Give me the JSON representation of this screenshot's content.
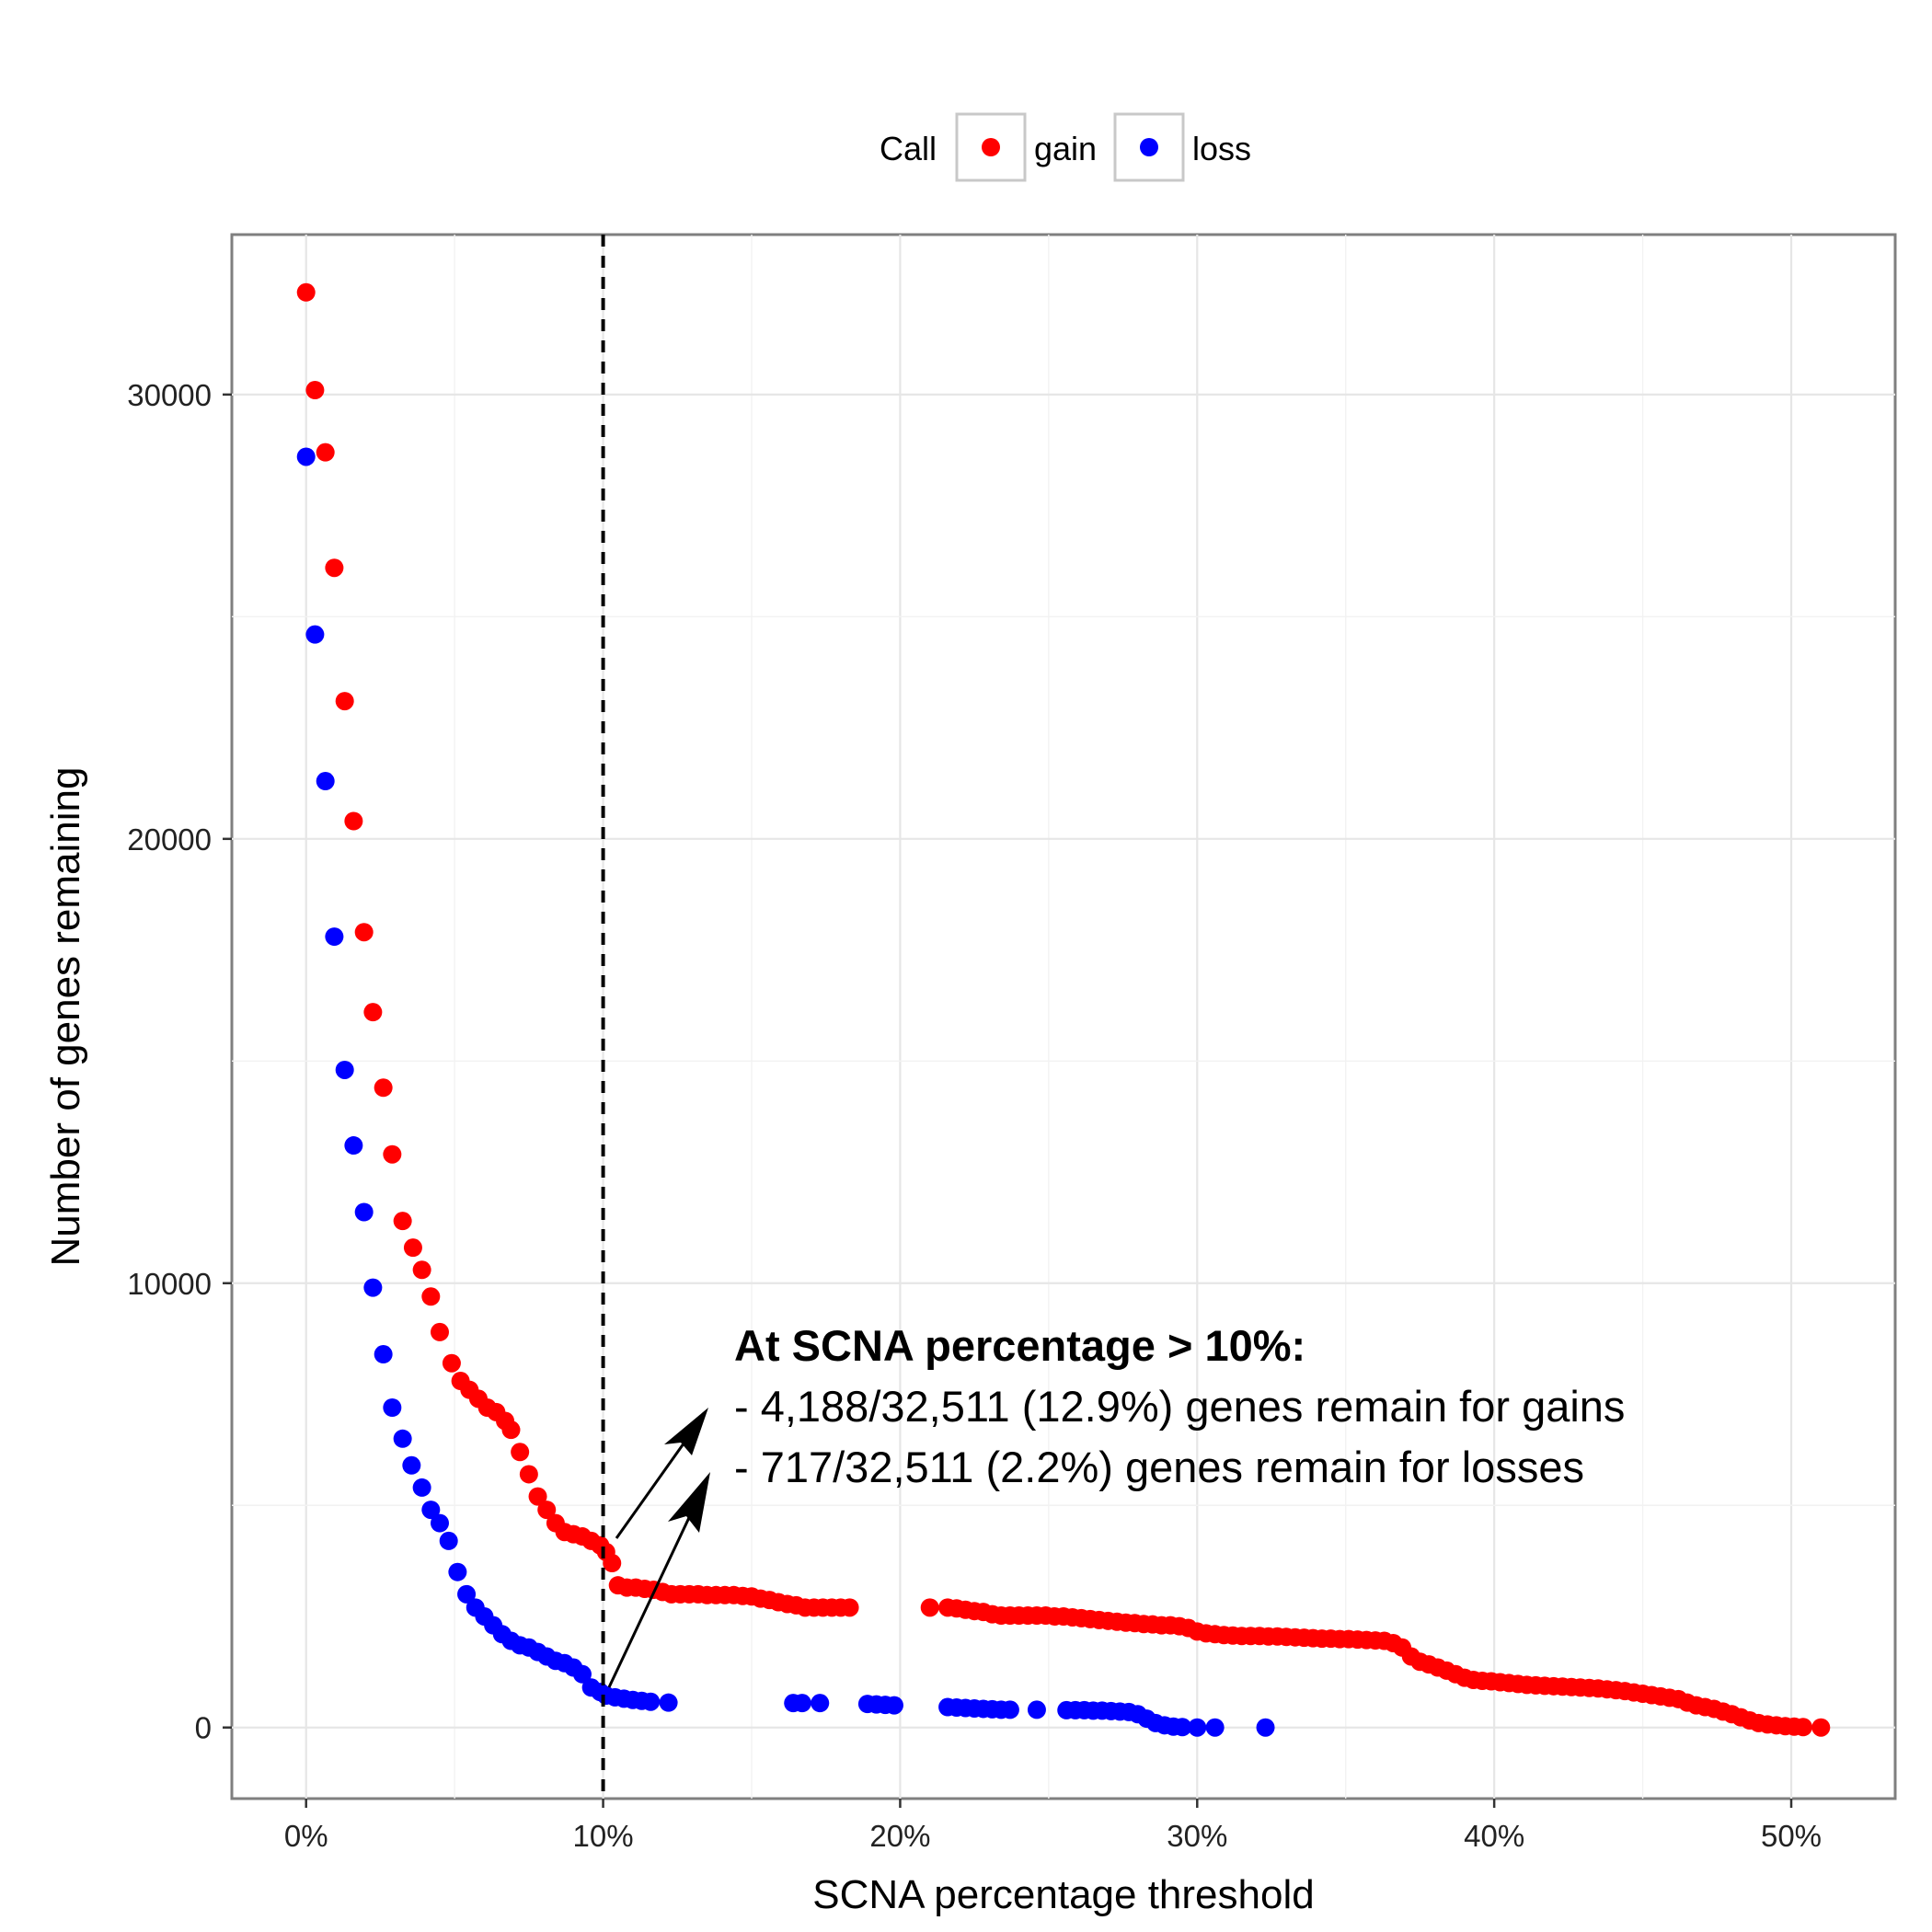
{
  "chart_data": {
    "type": "scatter",
    "xlabel": "SCNA percentage threshold",
    "ylabel": "Number of genes remaining",
    "xlim": [
      -2.5,
      53.5
    ],
    "ylim": [
      -1600,
      33600
    ],
    "x_ticks": [
      0,
      10,
      20,
      30,
      40,
      50
    ],
    "x_tick_labels": [
      "0%",
      "10%",
      "20%",
      "30%",
      "40%",
      "50%"
    ],
    "y_ticks": [
      0,
      10000,
      20000,
      30000
    ],
    "y_tick_labels": [
      "0",
      "10000",
      "20000",
      "30000"
    ],
    "grid": true,
    "legend": {
      "title": "Call",
      "position": "top",
      "entries": [
        {
          "label": "gain",
          "color": "#ff0000"
        },
        {
          "label": "loss",
          "color": "#0000ff"
        }
      ]
    },
    "threshold_line": {
      "x": 10,
      "style": "dashed"
    },
    "annotation": {
      "title": "At SCNA percentage > 10%:",
      "lines": [
        "- 4,188/32,511 (12.9%) genes remain for gains",
        "- 717/32,511 (2.2%) genes remain for losses"
      ]
    },
    "series": [
      {
        "name": "gain",
        "color": "#ff0000",
        "points": [
          [
            0.0,
            32300
          ],
          [
            0.3,
            30100
          ],
          [
            0.65,
            28700
          ],
          [
            0.95,
            26100
          ],
          [
            1.3,
            23100
          ],
          [
            1.6,
            20400
          ],
          [
            1.95,
            17900
          ],
          [
            2.25,
            16100
          ],
          [
            2.6,
            14400
          ],
          [
            2.9,
            12900
          ],
          [
            3.25,
            11400
          ],
          [
            3.6,
            10800
          ],
          [
            3.9,
            10300
          ],
          [
            4.2,
            9700
          ],
          [
            4.5,
            8900
          ],
          [
            4.9,
            8200
          ],
          [
            5.2,
            7800
          ],
          [
            5.5,
            7600
          ],
          [
            5.8,
            7400
          ],
          [
            6.1,
            7200
          ],
          [
            6.4,
            7100
          ],
          [
            6.7,
            6900
          ],
          [
            6.9,
            6700
          ],
          [
            7.2,
            6200
          ],
          [
            7.5,
            5700
          ],
          [
            7.8,
            5200
          ],
          [
            8.1,
            4900
          ],
          [
            8.4,
            4600
          ],
          [
            8.7,
            4400
          ],
          [
            9.0,
            4350
          ],
          [
            9.3,
            4300
          ],
          [
            9.6,
            4200
          ],
          [
            9.9,
            4100
          ],
          [
            10.1,
            3950
          ],
          [
            10.3,
            3700
          ],
          [
            10.5,
            3200
          ],
          [
            10.8,
            3150
          ],
          [
            11.1,
            3150
          ],
          [
            11.4,
            3120
          ],
          [
            11.7,
            3100
          ],
          [
            12.0,
            3050
          ],
          [
            12.3,
            3000
          ],
          [
            12.6,
            3000
          ],
          [
            12.9,
            3000
          ],
          [
            13.2,
            3000
          ],
          [
            13.5,
            2980
          ],
          [
            13.8,
            2980
          ],
          [
            14.1,
            2980
          ],
          [
            14.4,
            2980
          ],
          [
            14.7,
            2960
          ],
          [
            15.0,
            2950
          ],
          [
            15.3,
            2900
          ],
          [
            15.6,
            2870
          ],
          [
            15.9,
            2820
          ],
          [
            16.2,
            2780
          ],
          [
            16.5,
            2750
          ],
          [
            16.8,
            2700
          ],
          [
            17.1,
            2700
          ],
          [
            17.4,
            2700
          ],
          [
            17.7,
            2700
          ],
          [
            18.0,
            2700
          ],
          [
            18.3,
            2700
          ],
          [
            21.0,
            2700
          ],
          [
            21.6,
            2700
          ],
          [
            21.9,
            2680
          ],
          [
            22.2,
            2650
          ],
          [
            22.5,
            2620
          ],
          [
            22.8,
            2600
          ],
          [
            23.1,
            2550
          ],
          [
            23.4,
            2520
          ],
          [
            23.7,
            2520
          ],
          [
            24.0,
            2520
          ],
          [
            24.3,
            2520
          ],
          [
            24.6,
            2520
          ],
          [
            24.9,
            2520
          ],
          [
            25.2,
            2500
          ],
          [
            25.5,
            2500
          ],
          [
            25.8,
            2480
          ],
          [
            26.1,
            2460
          ],
          [
            26.4,
            2440
          ],
          [
            26.7,
            2420
          ],
          [
            27.0,
            2400
          ],
          [
            27.3,
            2380
          ],
          [
            27.6,
            2360
          ],
          [
            27.9,
            2350
          ],
          [
            28.2,
            2330
          ],
          [
            28.5,
            2320
          ],
          [
            28.8,
            2300
          ],
          [
            29.1,
            2300
          ],
          [
            29.4,
            2280
          ],
          [
            29.7,
            2240
          ],
          [
            30.0,
            2160
          ],
          [
            30.3,
            2120
          ],
          [
            30.6,
            2100
          ],
          [
            30.9,
            2080
          ],
          [
            31.2,
            2070
          ],
          [
            31.5,
            2060
          ],
          [
            31.8,
            2060
          ],
          [
            32.1,
            2060
          ],
          [
            32.4,
            2050
          ],
          [
            32.7,
            2050
          ],
          [
            33.0,
            2040
          ],
          [
            33.3,
            2030
          ],
          [
            33.6,
            2020
          ],
          [
            33.9,
            2010
          ],
          [
            34.2,
            2000
          ],
          [
            34.5,
            2000
          ],
          [
            34.8,
            1990
          ],
          [
            35.1,
            1990
          ],
          [
            35.4,
            1980
          ],
          [
            35.7,
            1970
          ],
          [
            36.0,
            1960
          ],
          [
            36.3,
            1950
          ],
          [
            36.6,
            1900
          ],
          [
            36.9,
            1800
          ],
          [
            37.2,
            1600
          ],
          [
            37.5,
            1480
          ],
          [
            37.8,
            1420
          ],
          [
            38.1,
            1350
          ],
          [
            38.4,
            1280
          ],
          [
            38.7,
            1200
          ],
          [
            39.0,
            1120
          ],
          [
            39.3,
            1070
          ],
          [
            39.6,
            1050
          ],
          [
            39.9,
            1040
          ],
          [
            40.2,
            1020
          ],
          [
            40.5,
            1000
          ],
          [
            40.8,
            980
          ],
          [
            41.1,
            960
          ],
          [
            41.4,
            950
          ],
          [
            41.7,
            940
          ],
          [
            42.0,
            930
          ],
          [
            42.3,
            920
          ],
          [
            42.6,
            910
          ],
          [
            42.9,
            900
          ],
          [
            43.2,
            890
          ],
          [
            43.5,
            880
          ],
          [
            43.8,
            860
          ],
          [
            44.1,
            840
          ],
          [
            44.4,
            820
          ],
          [
            44.7,
            790
          ],
          [
            45.0,
            760
          ],
          [
            45.3,
            730
          ],
          [
            45.6,
            700
          ],
          [
            45.9,
            670
          ],
          [
            46.2,
            640
          ],
          [
            46.5,
            560
          ],
          [
            46.8,
            500
          ],
          [
            47.1,
            460
          ],
          [
            47.4,
            420
          ],
          [
            47.7,
            360
          ],
          [
            48.0,
            300
          ],
          [
            48.3,
            230
          ],
          [
            48.6,
            160
          ],
          [
            48.9,
            100
          ],
          [
            49.2,
            70
          ],
          [
            49.5,
            50
          ],
          [
            49.8,
            30
          ],
          [
            50.1,
            20
          ],
          [
            50.4,
            10
          ],
          [
            51.0,
            0
          ]
        ]
      },
      {
        "name": "loss",
        "color": "#0000ff",
        "points": [
          [
            0.0,
            28600
          ],
          [
            0.3,
            24600
          ],
          [
            0.65,
            21300
          ],
          [
            0.95,
            17800
          ],
          [
            1.3,
            14800
          ],
          [
            1.6,
            13100
          ],
          [
            1.95,
            11600
          ],
          [
            2.25,
            9900
          ],
          [
            2.6,
            8400
          ],
          [
            2.9,
            7200
          ],
          [
            3.25,
            6500
          ],
          [
            3.55,
            5900
          ],
          [
            3.9,
            5400
          ],
          [
            4.2,
            4900
          ],
          [
            4.5,
            4600
          ],
          [
            4.8,
            4200
          ],
          [
            5.1,
            3500
          ],
          [
            5.4,
            3000
          ],
          [
            5.7,
            2700
          ],
          [
            6.0,
            2500
          ],
          [
            6.3,
            2300
          ],
          [
            6.6,
            2100
          ],
          [
            6.9,
            1950
          ],
          [
            7.2,
            1850
          ],
          [
            7.5,
            1800
          ],
          [
            7.8,
            1700
          ],
          [
            8.1,
            1600
          ],
          [
            8.4,
            1500
          ],
          [
            8.7,
            1450
          ],
          [
            9.0,
            1350
          ],
          [
            9.3,
            1200
          ],
          [
            9.6,
            900
          ],
          [
            9.9,
            800
          ],
          [
            10.1,
            720
          ],
          [
            10.4,
            680
          ],
          [
            10.7,
            650
          ],
          [
            11.0,
            620
          ],
          [
            11.3,
            600
          ],
          [
            11.6,
            580
          ],
          [
            12.2,
            560
          ],
          [
            16.4,
            550
          ],
          [
            16.7,
            550
          ],
          [
            17.3,
            550
          ],
          [
            18.9,
            530
          ],
          [
            19.2,
            520
          ],
          [
            19.5,
            510
          ],
          [
            19.8,
            500
          ],
          [
            21.6,
            460
          ],
          [
            21.9,
            450
          ],
          [
            22.2,
            440
          ],
          [
            22.5,
            430
          ],
          [
            22.8,
            420
          ],
          [
            23.1,
            410
          ],
          [
            23.4,
            400
          ],
          [
            23.7,
            400
          ],
          [
            24.6,
            400
          ],
          [
            25.6,
            390
          ],
          [
            25.9,
            390
          ],
          [
            26.2,
            390
          ],
          [
            26.5,
            380
          ],
          [
            26.8,
            380
          ],
          [
            27.1,
            370
          ],
          [
            27.4,
            360
          ],
          [
            27.7,
            350
          ],
          [
            28.0,
            300
          ],
          [
            28.3,
            200
          ],
          [
            28.6,
            100
          ],
          [
            28.9,
            50
          ],
          [
            29.2,
            20
          ],
          [
            29.5,
            10
          ],
          [
            30.0,
            0
          ],
          [
            30.6,
            0
          ],
          [
            32.3,
            0
          ]
        ]
      }
    ]
  }
}
